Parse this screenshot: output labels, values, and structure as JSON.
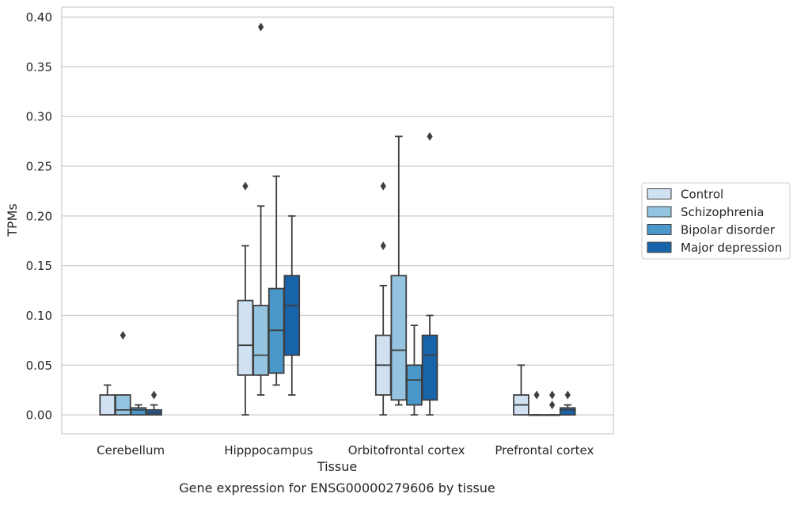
{
  "chart_data": {
    "type": "boxplot",
    "title": "Gene expression for ENSG00000279606 by tissue",
    "xlabel": "Tissue",
    "ylabel": "TPMs",
    "ylim": [
      -0.019,
      0.41
    ],
    "yticks": [
      "0.00",
      "0.05",
      "0.10",
      "0.15",
      "0.20",
      "0.25",
      "0.30",
      "0.35",
      "0.40"
    ],
    "ytick_values": [
      0,
      0.05,
      0.1,
      0.15,
      0.2,
      0.25,
      0.3,
      0.35,
      0.4
    ],
    "grid": true,
    "legend_position": "right",
    "categories": [
      "Cerebellum",
      "Hipppocampus",
      "Orbitofrontal cortex",
      "Prefrontal cortex"
    ],
    "series": [
      {
        "name": "Control",
        "color": "#d0e1f2",
        "boxes": [
          {
            "whislo": 0.0,
            "q1": 0.0,
            "med": 0.0,
            "q3": 0.02,
            "whishi": 0.03,
            "fliers": []
          },
          {
            "whislo": 0.0,
            "q1": 0.04,
            "med": 0.07,
            "q3": 0.115,
            "whishi": 0.17,
            "fliers": [
              0.23
            ]
          },
          {
            "whislo": 0.0,
            "q1": 0.02,
            "med": 0.05,
            "q3": 0.08,
            "whishi": 0.13,
            "fliers": [
              0.17,
              0.23
            ]
          },
          {
            "whislo": 0.0,
            "q1": 0.0,
            "med": 0.01,
            "q3": 0.02,
            "whishi": 0.05,
            "fliers": []
          }
        ]
      },
      {
        "name": "Schizophrenia",
        "color": "#94c4df",
        "boxes": [
          {
            "whislo": 0.0,
            "q1": 0.0,
            "med": 0.005,
            "q3": 0.02,
            "whishi": 0.02,
            "fliers": [
              0.08
            ]
          },
          {
            "whislo": 0.02,
            "q1": 0.04,
            "med": 0.06,
            "q3": 0.11,
            "whishi": 0.21,
            "fliers": [
              0.39
            ]
          },
          {
            "whislo": 0.01,
            "q1": 0.015,
            "med": 0.065,
            "q3": 0.14,
            "whishi": 0.28,
            "fliers": []
          },
          {
            "whislo": 0.0,
            "q1": 0.0,
            "med": 0.0,
            "q3": 0.0,
            "whishi": 0.0,
            "fliers": [
              0.02
            ]
          }
        ]
      },
      {
        "name": "Bipolar disorder",
        "color": "#4a98c9",
        "boxes": [
          {
            "whislo": 0.0,
            "q1": 0.0,
            "med": 0.005,
            "q3": 0.007,
            "whishi": 0.01,
            "fliers": []
          },
          {
            "whislo": 0.03,
            "q1": 0.042,
            "med": 0.085,
            "q3": 0.127,
            "whishi": 0.24,
            "fliers": []
          },
          {
            "whislo": 0.0,
            "q1": 0.01,
            "med": 0.035,
            "q3": 0.05,
            "whishi": 0.09,
            "fliers": []
          },
          {
            "whislo": 0.0,
            "q1": 0.0,
            "med": 0.0,
            "q3": 0.0,
            "whishi": 0.0,
            "fliers": [
              0.01,
              0.02
            ]
          }
        ]
      },
      {
        "name": "Major depression",
        "color": "#1764ab",
        "boxes": [
          {
            "whislo": 0.0,
            "q1": 0.0,
            "med": 0.002,
            "q3": 0.005,
            "whishi": 0.01,
            "fliers": [
              0.02
            ]
          },
          {
            "whislo": 0.02,
            "q1": 0.06,
            "med": 0.11,
            "q3": 0.14,
            "whishi": 0.2,
            "fliers": []
          },
          {
            "whislo": 0.0,
            "q1": 0.015,
            "med": 0.06,
            "q3": 0.08,
            "whishi": 0.1,
            "fliers": [
              0.28
            ]
          },
          {
            "whislo": 0.0,
            "q1": 0.0,
            "med": 0.005,
            "q3": 0.007,
            "whishi": 0.01,
            "fliers": [
              0.02
            ]
          }
        ]
      }
    ]
  }
}
